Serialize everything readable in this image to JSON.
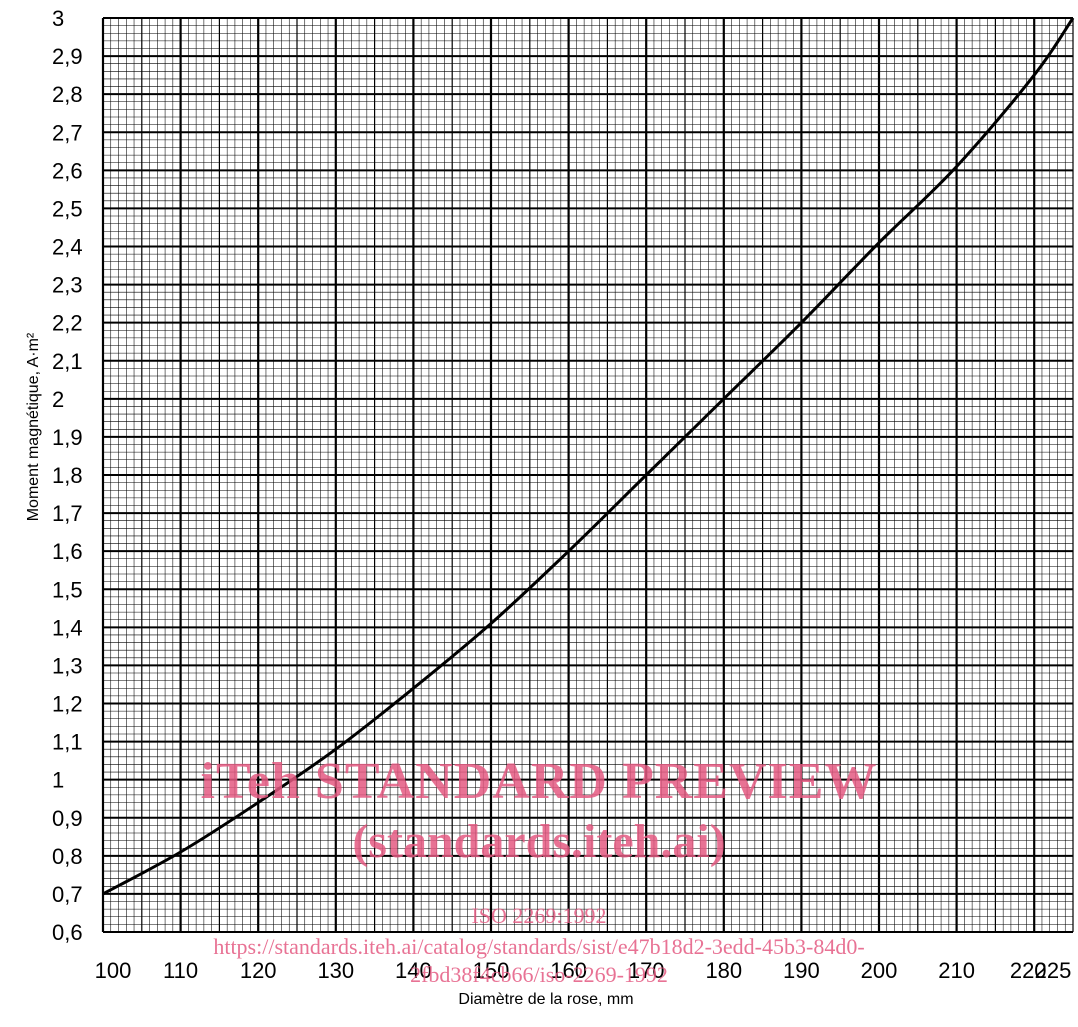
{
  "chart_data": {
    "type": "line",
    "xlabel": "Diamètre de la rose, mm",
    "ylabel": "Moment magnétique, A·m²",
    "xlim": [
      100,
      225
    ],
    "ylim": [
      0.6,
      3
    ],
    "x_ticks": [
      {
        "value": 100,
        "label": "100"
      },
      {
        "value": 110,
        "label": "110"
      },
      {
        "value": 120,
        "label": "120"
      },
      {
        "value": 130,
        "label": "130"
      },
      {
        "value": 140,
        "label": "140"
      },
      {
        "value": 150,
        "label": "150"
      },
      {
        "value": 160,
        "label": "160"
      },
      {
        "value": 170,
        "label": "170"
      },
      {
        "value": 180,
        "label": "180"
      },
      {
        "value": 190,
        "label": "190"
      },
      {
        "value": 200,
        "label": "200"
      },
      {
        "value": 210,
        "label": "210"
      },
      {
        "value": 220,
        "label": "220"
      },
      {
        "value": 225,
        "label": "225"
      }
    ],
    "y_ticks": [
      {
        "value": 0.6,
        "label": "0,6"
      },
      {
        "value": 0.7,
        "label": "0,7"
      },
      {
        "value": 0.8,
        "label": "0,8"
      },
      {
        "value": 0.9,
        "label": "0,9"
      },
      {
        "value": 1.0,
        "label": "1"
      },
      {
        "value": 1.1,
        "label": "1,1"
      },
      {
        "value": 1.2,
        "label": "1,2"
      },
      {
        "value": 1.3,
        "label": "1,3"
      },
      {
        "value": 1.4,
        "label": "1,4"
      },
      {
        "value": 1.5,
        "label": "1,5"
      },
      {
        "value": 1.6,
        "label": "1,6"
      },
      {
        "value": 1.7,
        "label": "1,7"
      },
      {
        "value": 1.8,
        "label": "1,8"
      },
      {
        "value": 1.9,
        "label": "1,9"
      },
      {
        "value": 2.0,
        "label": "2"
      },
      {
        "value": 2.1,
        "label": "2,1"
      },
      {
        "value": 2.2,
        "label": "2,2"
      },
      {
        "value": 2.3,
        "label": "2,3"
      },
      {
        "value": 2.4,
        "label": "2,4"
      },
      {
        "value": 2.5,
        "label": "2,5"
      },
      {
        "value": 2.6,
        "label": "2,6"
      },
      {
        "value": 2.7,
        "label": "2,7"
      },
      {
        "value": 2.8,
        "label": "2,8"
      },
      {
        "value": 2.9,
        "label": "2,9"
      },
      {
        "value": 3.0,
        "label": "3"
      }
    ],
    "grid": true,
    "series": [
      {
        "x": [
          100,
          110,
          120,
          130,
          140,
          150,
          160,
          170,
          180,
          190,
          200,
          210,
          220,
          225
        ],
        "y": [
          0.7,
          0.81,
          0.94,
          1.08,
          1.24,
          1.41,
          1.6,
          1.8,
          2.0,
          2.2,
          2.41,
          2.61,
          2.85,
          3.0
        ]
      }
    ]
  },
  "watermark": {
    "line1": "iTeh STANDARD PREVIEW",
    "line2": "(standards.iteh.ai)",
    "line3": "ISO 2269:1992",
    "line4": "https://standards.iteh.ai/catalog/standards/sist/e47b18d2-3edd-45b3-84d0-",
    "line5": "2fbd38f4cb66/iso-2269-1992"
  },
  "colors": {
    "ink": "#000000",
    "watermark": "#e45a82"
  }
}
